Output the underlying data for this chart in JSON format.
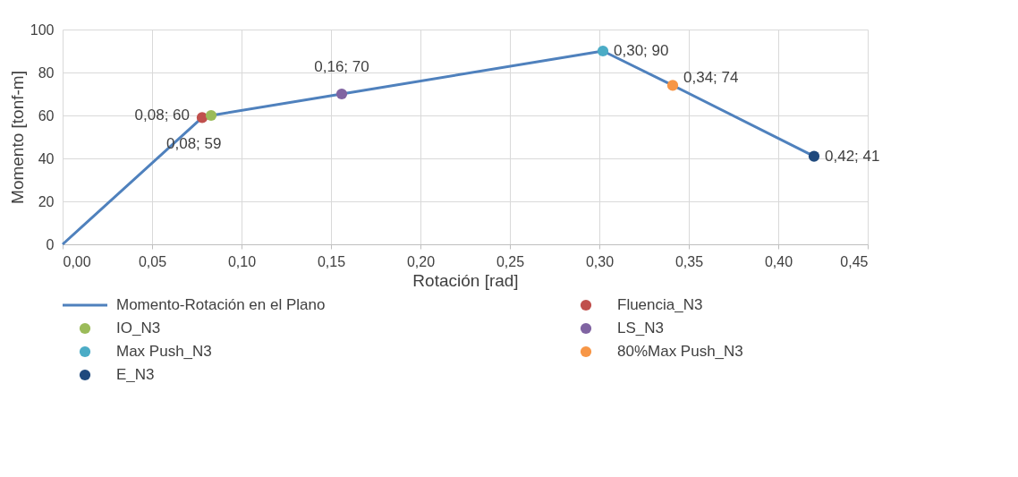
{
  "chart_data": {
    "type": "line",
    "xlabel": "Rotación [rad]",
    "ylabel": "Momento [tonf-m]",
    "xlim": [
      0,
      0.45
    ],
    "xticks": [
      {
        "value": 0,
        "label": "0,00"
      },
      {
        "value": 0.05,
        "label": "0,05"
      },
      {
        "value": 0.1,
        "label": "0,10"
      },
      {
        "value": 0.15,
        "label": "0,15"
      },
      {
        "value": 0.2,
        "label": "0,20"
      },
      {
        "value": 0.25,
        "label": "0,25"
      },
      {
        "value": 0.3,
        "label": "0,30"
      },
      {
        "value": 0.35,
        "label": "0,35"
      },
      {
        "value": 0.4,
        "label": "0,40"
      },
      {
        "value": 0.45,
        "label": "0,45"
      }
    ],
    "ylim": [
      0,
      100
    ],
    "yticks": [
      0,
      20,
      40,
      60,
      80,
      100
    ],
    "grid": true,
    "legend": "bottom",
    "series": [
      {
        "name": "Momento-Rotación en el Plano",
        "color": "#4f81bd",
        "marker": "none",
        "x": [
          0,
          0.078,
          0.083,
          0.156,
          0.302,
          0.341,
          0.42
        ],
        "values": [
          0,
          59,
          60,
          70,
          90,
          74,
          41
        ]
      },
      {
        "name": "Fluencia_N3",
        "type": "scatter",
        "color": "#c0504d",
        "marker": "circle",
        "x": [
          0.078
        ],
        "values": [
          59
        ],
        "value_labels": [
          "0,08; 59"
        ]
      },
      {
        "name": "IO_N3",
        "type": "scatter",
        "color": "#9bbb59",
        "marker": "circle",
        "x": [
          0.083
        ],
        "values": [
          60
        ],
        "value_labels": [
          "0,08; 60"
        ]
      },
      {
        "name": "LS_N3",
        "type": "scatter",
        "color": "#8064a2",
        "marker": "circle",
        "x": [
          0.156
        ],
        "values": [
          70
        ],
        "value_labels": [
          "0,16; 70"
        ]
      },
      {
        "name": "Max Push_N3",
        "type": "scatter",
        "color": "#4bacc6",
        "marker": "circle",
        "x": [
          0.302
        ],
        "values": [
          90
        ],
        "value_labels": [
          "0,30; 90"
        ]
      },
      {
        "name": "80%Max Push_N3",
        "type": "scatter",
        "color": "#f79646",
        "marker": "circle",
        "x": [
          0.341
        ],
        "values": [
          74
        ],
        "value_labels": [
          "0,34; 74"
        ]
      },
      {
        "name": "E_N3",
        "type": "scatter",
        "color": "#1f497d",
        "marker": "circle",
        "x": [
          0.42
        ],
        "values": [
          41
        ],
        "value_labels": [
          "0,42; 41"
        ]
      }
    ]
  }
}
